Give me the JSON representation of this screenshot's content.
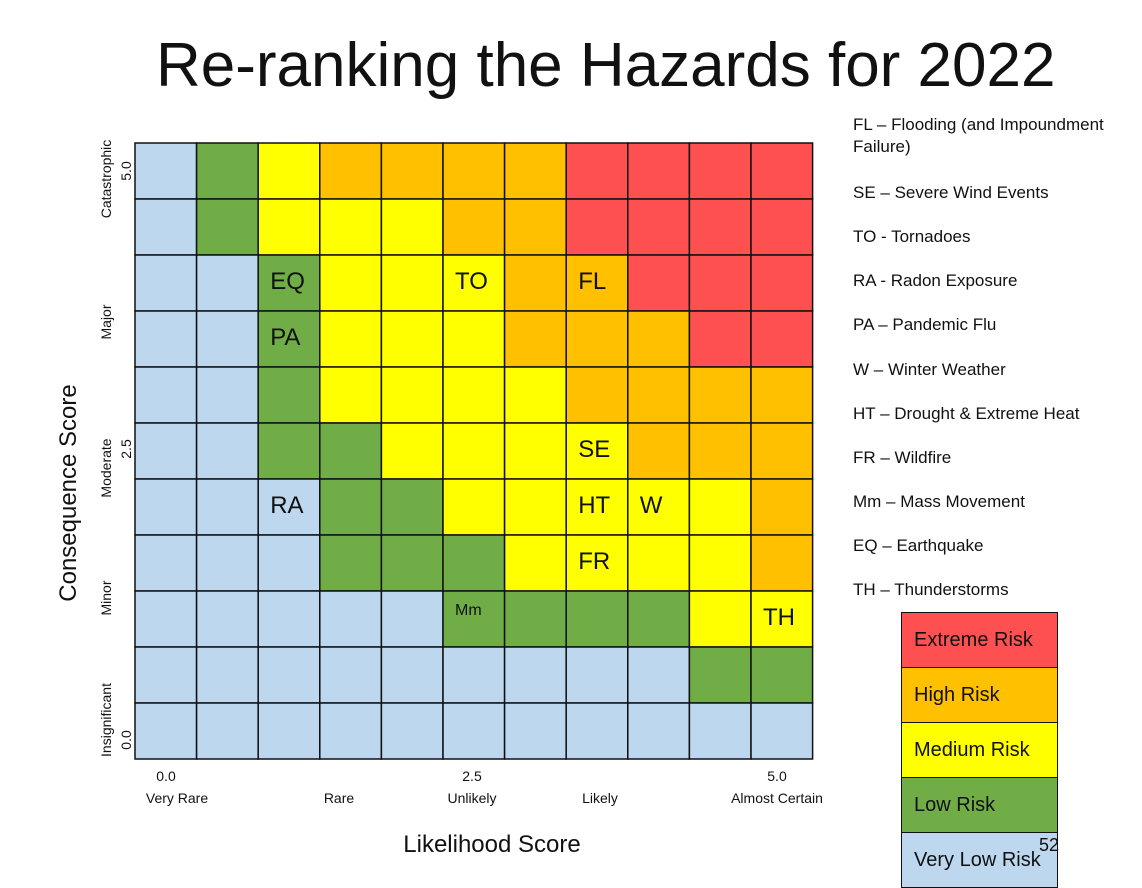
{
  "slide": {
    "title": "Re-ranking the Hazards for 2022",
    "page_number": "52"
  },
  "colors": {
    "Extreme": "#fe5050",
    "High": "#ffc000",
    "Medium": "#ffff00",
    "Low": "#70ad47",
    "VeryLow": "#bdd7ee"
  },
  "chart_data": {
    "type": "heatmap",
    "xlabel": "Likelihood Score",
    "ylabel": "Consequence Score",
    "x_ticks": [
      {
        "value": "0.0",
        "label": "Very Rare"
      },
      {
        "value": "",
        "label": "Rare"
      },
      {
        "value": "2.5",
        "label": "Unlikely"
      },
      {
        "value": "",
        "label": "Likely"
      },
      {
        "value": "5.0",
        "label": "Almost Certain"
      }
    ],
    "y_ticks": [
      {
        "value": "5.0",
        "label": "Catastrophic"
      },
      {
        "value": "",
        "label": "Major"
      },
      {
        "value": "2.5",
        "label": "Moderate"
      },
      {
        "value": "",
        "label": "Minor"
      },
      {
        "value": "0.0",
        "label": "Insignificant"
      }
    ],
    "columns": 11,
    "rows": 11,
    "grid": [
      [
        "VeryLow",
        "Low",
        "Medium",
        "High",
        "High",
        "High",
        "High",
        "Extreme",
        "Extreme",
        "Extreme",
        "Extreme"
      ],
      [
        "VeryLow",
        "Low",
        "Medium",
        "Medium",
        "Medium",
        "High",
        "High",
        "Extreme",
        "Extreme",
        "Extreme",
        "Extreme"
      ],
      [
        "VeryLow",
        "VeryLow",
        "Low",
        "Medium",
        "Medium",
        "Medium",
        "High",
        "High",
        "Extreme",
        "Extreme",
        "Extreme"
      ],
      [
        "VeryLow",
        "VeryLow",
        "Low",
        "Medium",
        "Medium",
        "Medium",
        "High",
        "High",
        "High",
        "Extreme",
        "Extreme"
      ],
      [
        "VeryLow",
        "VeryLow",
        "Low",
        "Medium",
        "Medium",
        "Medium",
        "Medium",
        "High",
        "High",
        "High",
        "High"
      ],
      [
        "VeryLow",
        "VeryLow",
        "Low",
        "Low",
        "Medium",
        "Medium",
        "Medium",
        "Medium",
        "High",
        "High",
        "High"
      ],
      [
        "VeryLow",
        "VeryLow",
        "VeryLow",
        "Low",
        "Low",
        "Medium",
        "Medium",
        "Medium",
        "Medium",
        "Medium",
        "High"
      ],
      [
        "VeryLow",
        "VeryLow",
        "VeryLow",
        "Low",
        "Low",
        "Low",
        "Medium",
        "Medium",
        "Medium",
        "Medium",
        "High"
      ],
      [
        "VeryLow",
        "VeryLow",
        "VeryLow",
        "VeryLow",
        "VeryLow",
        "Low",
        "Low",
        "Low",
        "Low",
        "Medium",
        "Medium"
      ],
      [
        "VeryLow",
        "VeryLow",
        "VeryLow",
        "VeryLow",
        "VeryLow",
        "VeryLow",
        "VeryLow",
        "VeryLow",
        "VeryLow",
        "Low",
        "Low"
      ],
      [
        "VeryLow",
        "VeryLow",
        "VeryLow",
        "VeryLow",
        "VeryLow",
        "VeryLow",
        "VeryLow",
        "VeryLow",
        "VeryLow",
        "VeryLow",
        "VeryLow"
      ]
    ],
    "hazards": [
      {
        "code": "EQ",
        "row": 2,
        "col": 2
      },
      {
        "code": "TO",
        "row": 2,
        "col": 5
      },
      {
        "code": "FL",
        "row": 2,
        "col": 7
      },
      {
        "code": "PA",
        "row": 3,
        "col": 2
      },
      {
        "code": "SE",
        "row": 5,
        "col": 7
      },
      {
        "code": "RA",
        "row": 6,
        "col": 2
      },
      {
        "code": "HT",
        "row": 6,
        "col": 7
      },
      {
        "code": "W",
        "row": 6,
        "col": 8
      },
      {
        "code": "FR",
        "row": 7,
        "col": 7
      },
      {
        "code": "Mm",
        "row": 8,
        "col": 5,
        "small": true
      },
      {
        "code": "TH",
        "row": 8,
        "col": 10
      }
    ],
    "hazard_legend": [
      "FL – Flooding (and Impoundment Failure)",
      "SE – Severe Wind Events",
      "TO - Tornadoes",
      "RA - Radon Exposure",
      "PA – Pandemic Flu",
      "W – Winter Weather",
      "HT – Drought & Extreme Heat",
      "FR – Wildfire",
      "Mm – Mass Movement",
      "EQ – Earthquake",
      "TH – Thunderstorms"
    ],
    "risk_levels": [
      {
        "key": "Extreme",
        "label": "Extreme Risk"
      },
      {
        "key": "High",
        "label": "High Risk"
      },
      {
        "key": "Medium",
        "label": "Medium Risk"
      },
      {
        "key": "Low",
        "label": "Low Risk"
      },
      {
        "key": "VeryLow",
        "label": "Very Low Risk"
      }
    ]
  }
}
